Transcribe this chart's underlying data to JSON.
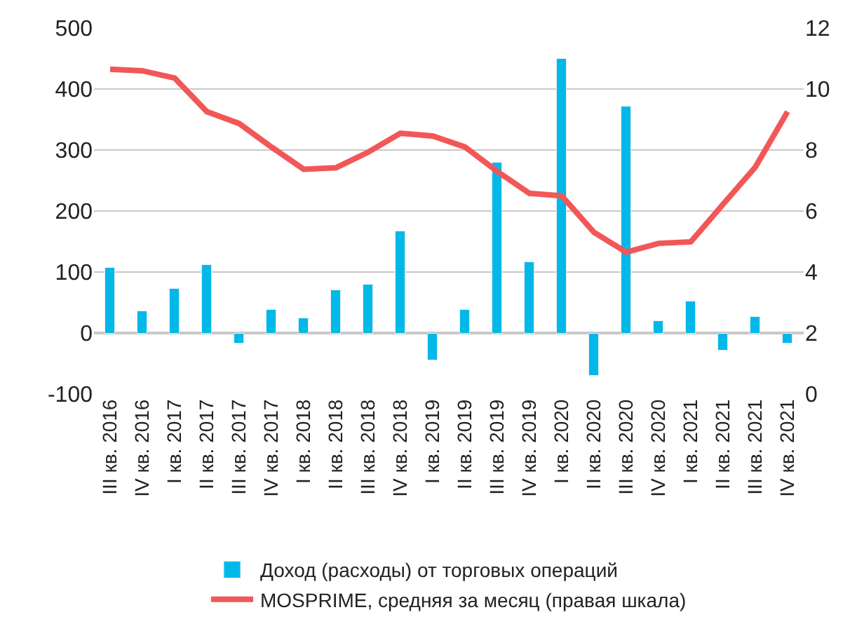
{
  "chart_data": {
    "type": "bar",
    "categories": [
      "III кв. 2016",
      "IV кв. 2016",
      "I кв. 2017",
      "II кв. 2017",
      "III кв. 2017",
      "IV кв. 2017",
      "I кв. 2018",
      "II кв. 2018",
      "III кв. 2018",
      "IV кв. 2018",
      "I кв. 2019",
      "II кв. 2019",
      "III кв. 2019",
      "IV кв. 2019",
      "I кв. 2020",
      "II кв. 2020",
      "III кв. 2020",
      "IV кв. 2020",
      "I кв. 2021",
      "II кв. 2021",
      "III кв. 2021",
      "IV кв. 2021"
    ],
    "series": [
      {
        "name": "Доход (расходы) от торговых операций",
        "color": "#00b9e8",
        "values": [
          107,
          35,
          73,
          112,
          -18,
          38,
          25,
          69,
          79,
          166,
          -45,
          38,
          279,
          117,
          449,
          -70,
          372,
          20,
          51,
          -29,
          27,
          -17
        ]
      },
      {
        "name": "MOSPRIME, средняя за месяц (правая шкала)",
        "type": "line",
        "axis": "y2",
        "color": "#f25757",
        "values": [
          10.65,
          10.6,
          10.36,
          9.26,
          8.87,
          8.1,
          7.37,
          7.42,
          7.93,
          8.55,
          8.46,
          8.1,
          7.3,
          6.58,
          6.5,
          5.3,
          4.65,
          4.94,
          4.99,
          6.22,
          7.44,
          9.26
        ]
      }
    ],
    "ylim": [
      -100,
      500
    ],
    "yticks": [
      -100,
      0,
      100,
      200,
      300,
      400,
      500
    ],
    "y2lim": [
      0,
      12
    ],
    "y2ticks": [
      0,
      2,
      4,
      6,
      8,
      10,
      12
    ],
    "grid": "y",
    "legend": "bottom",
    "marker": "none",
    "line_style": "solid"
  }
}
